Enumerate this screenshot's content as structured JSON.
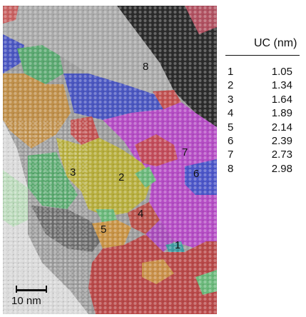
{
  "image": {
    "description_icon": "tem-micrograph-colored-superlattice-grains",
    "grain_labels": [
      "1",
      "2",
      "3",
      "4",
      "5",
      "6",
      "7",
      "8"
    ],
    "scale_bar_label": "10 nm"
  },
  "legend": {
    "header": "UC (nm)",
    "rows": [
      {
        "index": "1",
        "value": "1.05"
      },
      {
        "index": "2",
        "value": "1.34"
      },
      {
        "index": "3",
        "value": "1.64"
      },
      {
        "index": "4",
        "value": "1.89"
      },
      {
        "index": "5",
        "value": "2.14"
      },
      {
        "index": "6",
        "value": "2.39"
      },
      {
        "index": "7",
        "value": "2.73"
      },
      {
        "index": "8",
        "value": "2.98"
      }
    ]
  },
  "colors": {
    "grain_1": "#3f9aa0",
    "grain_2": "#b6ad3c",
    "grain_3": "#58a86d",
    "grain_4": "#b8504a",
    "grain_5": "#c79244",
    "grain_6": "#4b55c8",
    "grain_7": "#c24b5a",
    "grain_8": "#a8a8a8",
    "magenta_grain": "#b44cc4",
    "blue_grain": "#4a56c0",
    "dark_grain": "#2a2a2a",
    "white_band": "#d8d8d8"
  }
}
